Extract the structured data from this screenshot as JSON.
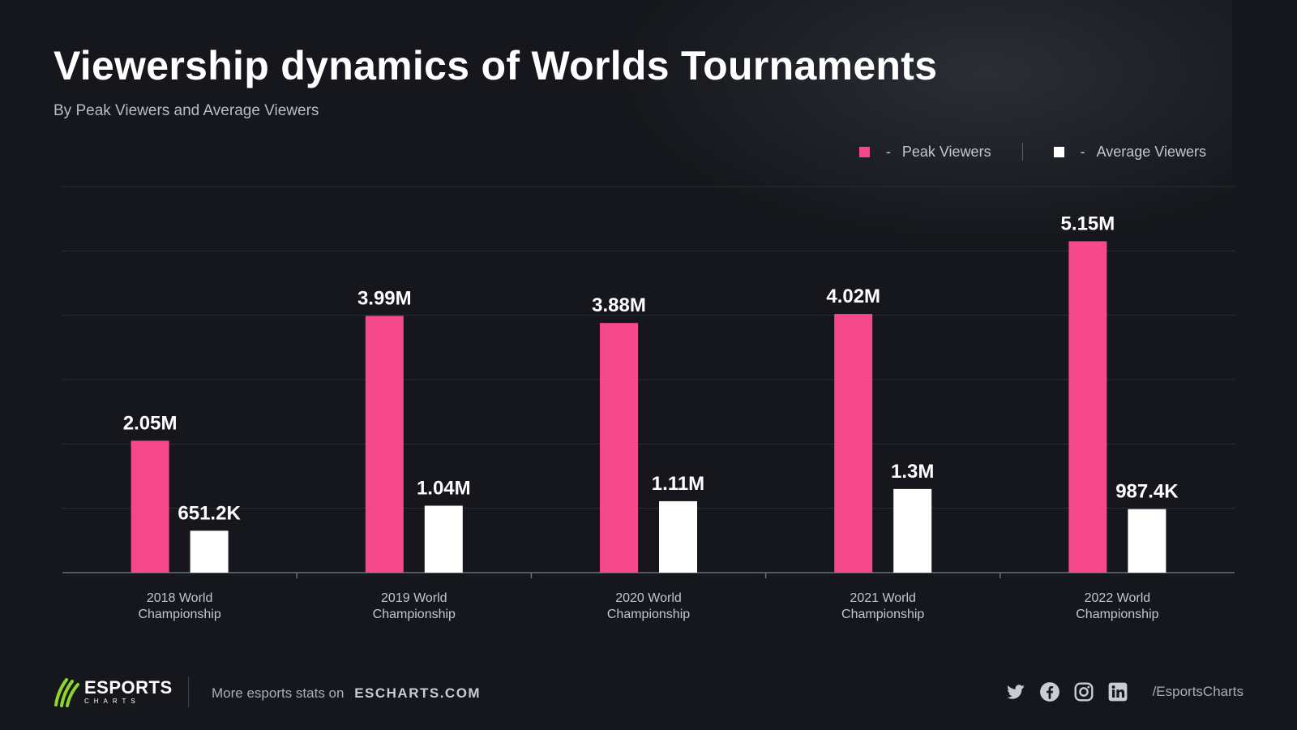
{
  "header": {
    "title": "Viewership dynamics of Worlds Tournaments",
    "subtitle": "By Peak Viewers and Average Viewers"
  },
  "legend": {
    "dash": "-",
    "items": [
      {
        "label": "Peak Viewers",
        "color": "#f5498b"
      },
      {
        "label": "Average Viewers",
        "color": "#ffffff"
      }
    ]
  },
  "chart_data": {
    "type": "bar",
    "categories": [
      [
        "2018 World",
        "Championship"
      ],
      [
        "2019 World",
        "Championship"
      ],
      [
        "2020 World",
        "Championship"
      ],
      [
        "2021 World",
        "Championship"
      ],
      [
        "2022 World",
        "Championship"
      ]
    ],
    "series": [
      {
        "name": "Peak Viewers",
        "color": "#f5498b",
        "values": [
          2050000,
          3990000,
          3880000,
          4020000,
          5150000
        ],
        "labels": [
          "2.05M",
          "3.99M",
          "3.88M",
          "4.02M",
          "5.15M"
        ]
      },
      {
        "name": "Average Viewers",
        "color": "#ffffff",
        "values": [
          651200,
          1040000,
          1110000,
          1300000,
          987400
        ],
        "labels": [
          "651.2K",
          "1.04M",
          "1.11M",
          "1.3M",
          "987.4K"
        ]
      }
    ],
    "ylim": [
      0,
      6000000
    ],
    "grid": true,
    "legend_position": "top-right"
  },
  "footer": {
    "brand": "ESPORTS",
    "brand_sub": "CHARTS",
    "more_text": "More esports stats on",
    "site": "ESCHARTS.COM",
    "handle": "/EsportsCharts",
    "social_icons": [
      "twitter-icon",
      "facebook-icon",
      "instagram-icon",
      "linkedin-icon"
    ],
    "logo_color": "#8ed629"
  }
}
